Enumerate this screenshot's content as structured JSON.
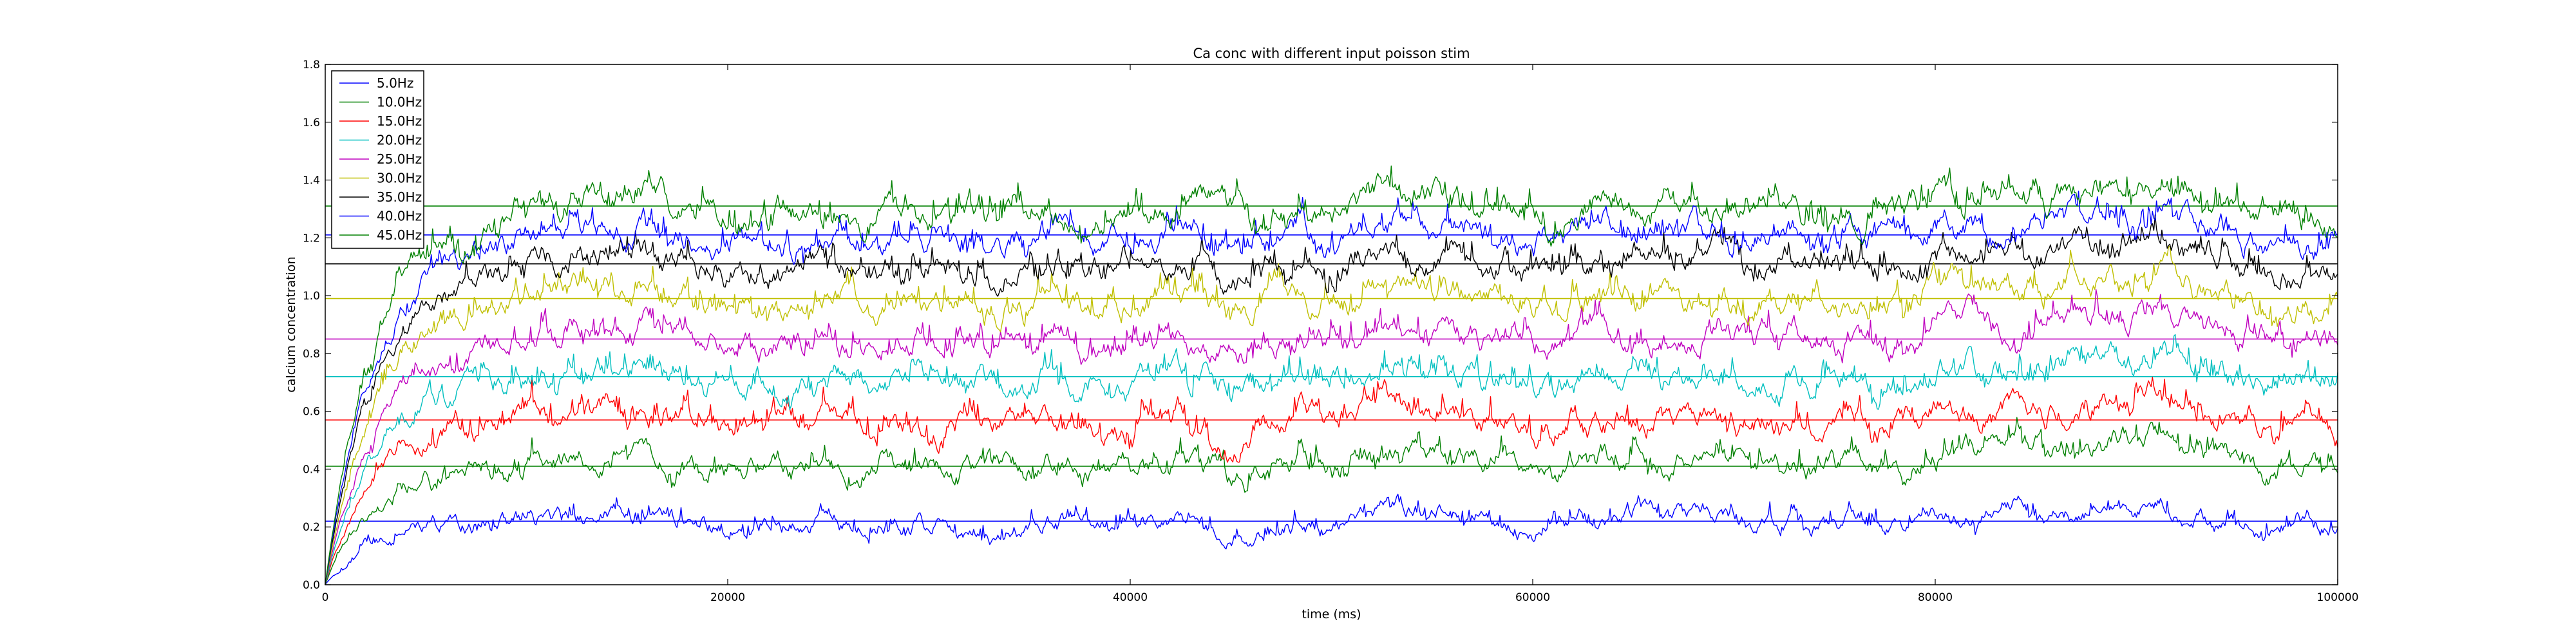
{
  "chart_data": {
    "type": "line",
    "title": "Ca conc with different input poisson stim",
    "xlabel": "time (ms)",
    "ylabel": "calcium concentration",
    "xlim": [
      0,
      100000
    ],
    "ylim": [
      0.0,
      1.8
    ],
    "x_ticks": [
      0,
      20000,
      40000,
      60000,
      80000,
      100000
    ],
    "x_tick_labels": [
      "0",
      "20000",
      "40000",
      "60000",
      "80000",
      "100000"
    ],
    "y_ticks": [
      0.0,
      0.2,
      0.4,
      0.6,
      0.8,
      1.0,
      1.2,
      1.4,
      1.6,
      1.8
    ],
    "y_tick_labels": [
      "0.0",
      "0.2",
      "0.4",
      "0.6",
      "0.8",
      "1.0",
      "1.2",
      "1.4",
      "1.6",
      "1.8"
    ],
    "grid": false,
    "legend": "top-left",
    "series": [
      {
        "name": "5.0Hz",
        "color": "#0000ff",
        "steady": 0.22,
        "amp": 0.07,
        "mean_line": 0.22
      },
      {
        "name": "10.0Hz",
        "color": "#008000",
        "steady": 0.42,
        "amp": 0.09,
        "mean_line": 0.41
      },
      {
        "name": "15.0Hz",
        "color": "#ff0000",
        "steady": 0.57,
        "amp": 0.1,
        "mean_line": 0.57
      },
      {
        "name": "20.0Hz",
        "color": "#00bfbf",
        "steady": 0.72,
        "amp": 0.1,
        "mean_line": 0.72
      },
      {
        "name": "25.0Hz",
        "color": "#bf00bf",
        "steady": 0.86,
        "amp": 0.1,
        "mean_line": 0.85
      },
      {
        "name": "30.0Hz",
        "color": "#bfbf00",
        "steady": 0.99,
        "amp": 0.1,
        "mean_line": 0.99
      },
      {
        "name": "35.0Hz",
        "color": "#000000",
        "steady": 1.11,
        "amp": 0.1,
        "mean_line": 1.11
      },
      {
        "name": "40.0Hz",
        "color": "#0000ff",
        "steady": 1.21,
        "amp": 0.1,
        "mean_line": 1.21
      },
      {
        "name": "45.0Hz",
        "color": "#008000",
        "steady": 1.31,
        "amp": 0.11,
        "mean_line": 1.31
      }
    ]
  }
}
